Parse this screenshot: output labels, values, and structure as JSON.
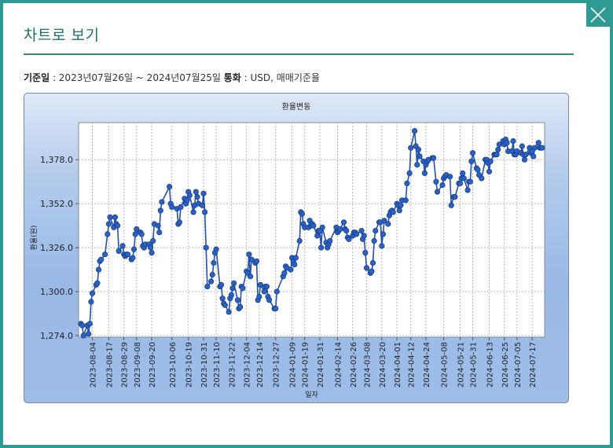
{
  "dialog": {
    "title": "차트로 보기"
  },
  "info": {
    "base_date_label": "기준일",
    "base_date_value": "2023년07월26일 ~ 2024년07월25일",
    "currency_label": "통화",
    "currency_value": "USD, 매매기준율"
  },
  "colors": {
    "accent": "#2e9a92",
    "line": "#2350a8",
    "marker": "#2a62c4"
  },
  "icons": {
    "close": "close-icon"
  },
  "chart_data": {
    "type": "line",
    "title": "환율변동",
    "xlabel": "일자",
    "ylabel": "환율(원)",
    "ylim": [
      1274.0,
      1399.0
    ],
    "yticks": [
      1274.0,
      1300.0,
      1326.0,
      1352.0,
      1378.0
    ],
    "ytick_labels": [
      "1,274.0",
      "1,300.0",
      "1,326.0",
      "1,352.0",
      "1,378.0"
    ],
    "xlim": [
      "2023-07-26",
      "2024-07-25"
    ],
    "xticks": [
      "2023-08-04",
      "2023-08-17",
      "2023-08-29",
      "2023-09-08",
      "2023-09-20",
      "2023-10-06",
      "2023-10-19",
      "2023-10-31",
      "2023-11-10",
      "2023-11-22",
      "2023-12-04",
      "2023-12-14",
      "2023-12-27",
      "2024-01-09",
      "2024-01-19",
      "2024-01-31",
      "2024-02-14",
      "2024-02-26",
      "2024-03-08",
      "2024-03-20",
      "2024-04-01",
      "2024-04-12",
      "2024-04-24",
      "2024-05-08",
      "2024-05-21",
      "2024-05-31",
      "2024-06-13",
      "2024-06-25",
      "2024-07-05",
      "2024-07-17"
    ],
    "grid": true,
    "series": [
      {
        "values": [
          [
            "2023-07-26",
            1281
          ],
          [
            "2023-07-27",
            1280
          ],
          [
            "2023-07-28",
            1274
          ],
          [
            "2023-07-31",
            1280
          ],
          [
            "2023-08-01",
            1275
          ],
          [
            "2023-08-02",
            1281
          ],
          [
            "2023-08-03",
            1294
          ],
          [
            "2023-08-04",
            1299
          ],
          [
            "2023-08-07",
            1304
          ],
          [
            "2023-08-08",
            1305
          ],
          [
            "2023-08-09",
            1313
          ],
          [
            "2023-08-10",
            1318
          ],
          [
            "2023-08-11",
            1319
          ],
          [
            "2023-08-14",
            1322
          ],
          [
            "2023-08-16",
            1334
          ],
          [
            "2023-08-17",
            1340
          ],
          [
            "2023-08-18",
            1344
          ],
          [
            "2023-08-21",
            1338
          ],
          [
            "2023-08-22",
            1344
          ],
          [
            "2023-08-23",
            1340
          ],
          [
            "2023-08-24",
            1339
          ],
          [
            "2023-08-25",
            1324
          ],
          [
            "2023-08-28",
            1327
          ],
          [
            "2023-08-29",
            1322
          ],
          [
            "2023-08-30",
            1321
          ],
          [
            "2023-08-31",
            1322
          ],
          [
            "2023-09-01",
            1322
          ],
          [
            "2023-09-04",
            1319
          ],
          [
            "2023-09-05",
            1320
          ],
          [
            "2023-09-06",
            1325
          ],
          [
            "2023-09-07",
            1334
          ],
          [
            "2023-09-08",
            1337
          ],
          [
            "2023-09-11",
            1335
          ],
          [
            "2023-09-12",
            1334
          ],
          [
            "2023-09-13",
            1327
          ],
          [
            "2023-09-14",
            1326
          ],
          [
            "2023-09-15",
            1328
          ],
          [
            "2023-09-18",
            1328
          ],
          [
            "2023-09-19",
            1326
          ],
          [
            "2023-09-20",
            1323
          ],
          [
            "2023-09-21",
            1330
          ],
          [
            "2023-09-22",
            1340
          ],
          [
            "2023-09-25",
            1339
          ],
          [
            "2023-09-26",
            1335
          ],
          [
            "2023-09-27",
            1348
          ],
          [
            "2023-09-28",
            1353
          ],
          [
            "2023-10-04",
            1362
          ],
          [
            "2023-10-05",
            1352
          ],
          [
            "2023-10-06",
            1350
          ],
          [
            "2023-10-10",
            1349
          ],
          [
            "2023-10-11",
            1340
          ],
          [
            "2023-10-12",
            1341
          ],
          [
            "2023-10-13",
            1350
          ],
          [
            "2023-10-16",
            1355
          ],
          [
            "2023-10-17",
            1352
          ],
          [
            "2023-10-18",
            1354
          ],
          [
            "2023-10-19",
            1359
          ],
          [
            "2023-10-20",
            1357
          ],
          [
            "2023-10-23",
            1347
          ],
          [
            "2023-10-24",
            1351
          ],
          [
            "2023-10-25",
            1359
          ],
          [
            "2023-10-26",
            1356
          ],
          [
            "2023-10-27",
            1352
          ],
          [
            "2023-10-30",
            1351
          ],
          [
            "2023-10-31",
            1358
          ],
          [
            "2023-11-01",
            1347
          ],
          [
            "2023-11-02",
            1326
          ],
          [
            "2023-11-03",
            1303
          ],
          [
            "2023-11-06",
            1306
          ],
          [
            "2023-11-07",
            1310
          ],
          [
            "2023-11-08",
            1317
          ],
          [
            "2023-11-09",
            1323
          ],
          [
            "2023-11-10",
            1325
          ],
          [
            "2023-11-13",
            1303
          ],
          [
            "2023-11-14",
            1304
          ],
          [
            "2023-11-15",
            1296
          ],
          [
            "2023-11-16",
            1293
          ],
          [
            "2023-11-17",
            1292
          ],
          [
            "2023-11-20",
            1288
          ],
          [
            "2023-11-21",
            1296
          ],
          [
            "2023-11-22",
            1298
          ],
          [
            "2023-11-23",
            1302
          ],
          [
            "2023-11-24",
            1305
          ],
          [
            "2023-11-27",
            1295
          ],
          [
            "2023-11-28",
            1290
          ],
          [
            "2023-11-29",
            1291
          ],
          [
            "2023-11-30",
            1303
          ],
          [
            "2023-12-01",
            1302
          ],
          [
            "2023-12-04",
            1312
          ],
          [
            "2023-12-05",
            1311
          ],
          [
            "2023-12-06",
            1322
          ],
          [
            "2023-12-07",
            1309
          ],
          [
            "2023-12-08",
            1319
          ],
          [
            "2023-12-11",
            1317
          ],
          [
            "2023-12-12",
            1318
          ],
          [
            "2023-12-13",
            1295
          ],
          [
            "2023-12-14",
            1297
          ],
          [
            "2023-12-15",
            1304
          ],
          [
            "2023-12-18",
            1300
          ],
          [
            "2023-12-19",
            1303
          ],
          [
            "2023-12-20",
            1303
          ],
          [
            "2023-12-21",
            1297
          ],
          [
            "2023-12-22",
            1295
          ],
          [
            "2023-12-26",
            1290
          ],
          [
            "2023-12-27",
            1290
          ],
          [
            "2023-12-28",
            1300
          ],
          [
            "2024-01-02",
            1309
          ],
          [
            "2024-01-03",
            1311
          ],
          [
            "2024-01-04",
            1315
          ],
          [
            "2024-01-05",
            1314
          ],
          [
            "2024-01-08",
            1313
          ],
          [
            "2024-01-09",
            1320
          ],
          [
            "2024-01-10",
            1318
          ],
          [
            "2024-01-11",
            1316
          ],
          [
            "2024-01-12",
            1320
          ],
          [
            "2024-01-15",
            1330
          ],
          [
            "2024-01-16",
            1347
          ],
          [
            "2024-01-17",
            1346
          ],
          [
            "2024-01-18",
            1340
          ],
          [
            "2024-01-19",
            1338
          ],
          [
            "2024-01-22",
            1338
          ],
          [
            "2024-01-23",
            1342
          ],
          [
            "2024-01-24",
            1339
          ],
          [
            "2024-01-25",
            1340
          ],
          [
            "2024-01-26",
            1339
          ],
          [
            "2024-01-29",
            1333
          ],
          [
            "2024-01-30",
            1336
          ],
          [
            "2024-01-31",
            1336
          ],
          [
            "2024-02-01",
            1326
          ],
          [
            "2024-02-02",
            1338
          ],
          [
            "2024-02-05",
            1329
          ],
          [
            "2024-02-06",
            1326
          ],
          [
            "2024-02-07",
            1328
          ],
          [
            "2024-02-08",
            1330
          ],
          [
            "2024-02-13",
            1338
          ],
          [
            "2024-02-14",
            1335
          ],
          [
            "2024-02-15",
            1336
          ],
          [
            "2024-02-16",
            1337
          ],
          [
            "2024-02-19",
            1341
          ],
          [
            "2024-02-20",
            1337
          ],
          [
            "2024-02-21",
            1336
          ],
          [
            "2024-02-22",
            1332
          ],
          [
            "2024-02-23",
            1331
          ],
          [
            "2024-02-26",
            1333
          ],
          [
            "2024-02-27",
            1335
          ],
          [
            "2024-02-28",
            1335
          ],
          [
            "2024-02-29",
            1334
          ],
          [
            "2024-03-04",
            1336
          ],
          [
            "2024-03-05",
            1331
          ],
          [
            "2024-03-06",
            1333
          ],
          [
            "2024-03-07",
            1323
          ],
          [
            "2024-03-08",
            1314
          ],
          [
            "2024-03-11",
            1311
          ],
          [
            "2024-03-12",
            1312
          ],
          [
            "2024-03-13",
            1317
          ],
          [
            "2024-03-14",
            1330
          ],
          [
            "2024-03-15",
            1336
          ],
          [
            "2024-03-18",
            1341
          ],
          [
            "2024-03-19",
            1341
          ],
          [
            "2024-03-20",
            1327
          ],
          [
            "2024-03-21",
            1334
          ],
          [
            "2024-03-22",
            1342
          ],
          [
            "2024-03-25",
            1340
          ],
          [
            "2024-03-26",
            1345
          ],
          [
            "2024-03-27",
            1347
          ],
          [
            "2024-03-28",
            1348
          ],
          [
            "2024-03-29",
            1347
          ],
          [
            "2024-04-01",
            1352
          ],
          [
            "2024-04-02",
            1351
          ],
          [
            "2024-04-03",
            1348
          ],
          [
            "2024-04-04",
            1351
          ],
          [
            "2024-04-05",
            1354
          ],
          [
            "2024-04-08",
            1354
          ],
          [
            "2024-04-09",
            1364
          ],
          [
            "2024-04-11",
            1370
          ],
          [
            "2024-04-12",
            1385
          ],
          [
            "2024-04-15",
            1395
          ],
          [
            "2024-04-16",
            1386
          ],
          [
            "2024-04-17",
            1375
          ],
          [
            "2024-04-18",
            1384
          ],
          [
            "2024-04-19",
            1380
          ],
          [
            "2024-04-22",
            1377
          ],
          [
            "2024-04-23",
            1370
          ],
          [
            "2024-04-24",
            1375
          ],
          [
            "2024-04-25",
            1377
          ],
          [
            "2024-04-26",
            1378
          ],
          [
            "2024-04-29",
            1379
          ],
          [
            "2024-04-30",
            1379
          ],
          [
            "2024-05-02",
            1365
          ],
          [
            "2024-05-03",
            1359
          ],
          [
            "2024-05-07",
            1363
          ],
          [
            "2024-05-08",
            1367
          ],
          [
            "2024-05-09",
            1368
          ],
          [
            "2024-05-10",
            1369
          ],
          [
            "2024-05-13",
            1368
          ],
          [
            "2024-05-14",
            1351
          ],
          [
            "2024-05-16",
            1356
          ],
          [
            "2024-05-17",
            1356
          ],
          [
            "2024-05-20",
            1364
          ],
          [
            "2024-05-21",
            1364
          ],
          [
            "2024-05-22",
            1367
          ],
          [
            "2024-05-23",
            1370
          ],
          [
            "2024-05-24",
            1367
          ],
          [
            "2024-05-27",
            1360
          ],
          [
            "2024-05-28",
            1365
          ],
          [
            "2024-05-29",
            1365
          ],
          [
            "2024-05-30",
            1377
          ],
          [
            "2024-05-31",
            1382
          ],
          [
            "2024-06-03",
            1373
          ],
          [
            "2024-06-04",
            1372
          ],
          [
            "2024-06-05",
            1369
          ],
          [
            "2024-06-07",
            1367
          ],
          [
            "2024-06-10",
            1378
          ],
          [
            "2024-06-11",
            1378
          ],
          [
            "2024-06-12",
            1376
          ],
          [
            "2024-06-13",
            1371
          ],
          [
            "2024-06-14",
            1377
          ],
          [
            "2024-06-17",
            1381
          ],
          [
            "2024-06-18",
            1381
          ],
          [
            "2024-06-19",
            1381
          ],
          [
            "2024-06-20",
            1384
          ],
          [
            "2024-06-21",
            1387
          ],
          [
            "2024-06-24",
            1389
          ],
          [
            "2024-06-25",
            1387
          ],
          [
            "2024-06-26",
            1390
          ],
          [
            "2024-06-27",
            1388
          ],
          [
            "2024-06-28",
            1383
          ],
          [
            "2024-07-01",
            1383
          ],
          [
            "2024-07-02",
            1389
          ],
          [
            "2024-07-03",
            1381
          ],
          [
            "2024-07-04",
            1381
          ],
          [
            "2024-07-05",
            1383
          ],
          [
            "2024-07-08",
            1382
          ],
          [
            "2024-07-09",
            1386
          ],
          [
            "2024-07-10",
            1381
          ],
          [
            "2024-07-11",
            1378
          ],
          [
            "2024-07-12",
            1381
          ],
          [
            "2024-07-15",
            1385
          ],
          [
            "2024-07-16",
            1382
          ],
          [
            "2024-07-17",
            1383
          ],
          [
            "2024-07-18",
            1380
          ],
          [
            "2024-07-19",
            1385
          ],
          [
            "2024-07-22",
            1388
          ],
          [
            "2024-07-23",
            1385
          ],
          [
            "2024-07-24",
            1385
          ],
          [
            "2024-07-25",
            1385
          ]
        ]
      }
    ]
  }
}
